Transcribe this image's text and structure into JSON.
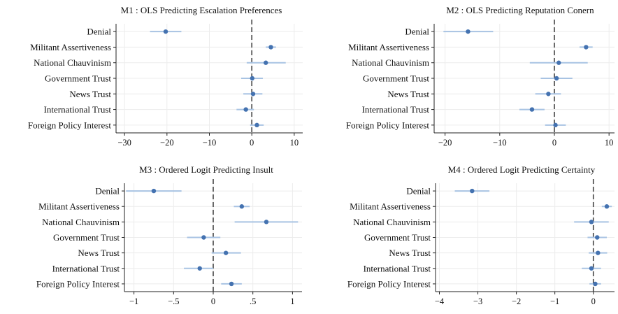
{
  "chart_data": [
    {
      "type": "coefficient-plot",
      "title": "M1 : OLS Predicting Escalation Preferences",
      "categories": [
        "Denial",
        "Militant Assertiveness",
        "National Chauvinism",
        "Government Trust",
        "News Trust",
        "International Trust",
        "Foreign Policy Interest"
      ],
      "estimates": [
        -20.3,
        4.5,
        3.3,
        0.1,
        0.3,
        -1.4,
        1.2
      ],
      "ci_low": [
        -24.0,
        3.3,
        -1.2,
        -2.5,
        -2.0,
        -3.6,
        -0.4
      ],
      "ci_high": [
        -16.6,
        5.7,
        8.0,
        2.6,
        2.5,
        0.5,
        2.8
      ],
      "xlim": [
        -32,
        12
      ],
      "xticks": [
        -30,
        -20,
        -10,
        0,
        10
      ],
      "xtick_labels": [
        "−30",
        "−20",
        "−10",
        "0",
        "10"
      ],
      "reference_line": 0,
      "grid": true
    },
    {
      "type": "coefficient-plot",
      "title": "M2 : OLS Predicting Reputation Conern",
      "categories": [
        "Denial",
        "Militant Assertiveness",
        "National Chauvinism",
        "Government Trust",
        "News Trust",
        "International Trust",
        "Foreign Policy Interest"
      ],
      "estimates": [
        -15.8,
        5.8,
        0.8,
        0.4,
        -1.1,
        -4.1,
        0.2
      ],
      "ci_low": [
        -20.3,
        4.6,
        -4.5,
        -2.5,
        -3.5,
        -6.4,
        -1.7
      ],
      "ci_high": [
        -11.2,
        7.0,
        6.1,
        3.3,
        1.2,
        -1.8,
        2.1
      ],
      "xlim": [
        -22,
        11
      ],
      "xticks": [
        -20,
        -10,
        0,
        10
      ],
      "xtick_labels": [
        "−20",
        "−10",
        "0",
        "10"
      ],
      "reference_line": 0,
      "grid": true
    },
    {
      "type": "coefficient-plot",
      "title": "M3 : Ordered Logit Predicting Insult",
      "categories": [
        "Denial",
        "Militant Assertiveness",
        "National Chauvinism",
        "Government Trust",
        "News Trust",
        "International Trust",
        "Foreign Policy Interest"
      ],
      "estimates": [
        -0.75,
        0.36,
        0.67,
        -0.12,
        0.16,
        -0.17,
        0.23
      ],
      "ci_low": [
        -1.1,
        0.26,
        0.27,
        -0.33,
        -0.02,
        -0.37,
        0.1
      ],
      "ci_high": [
        -0.4,
        0.46,
        1.07,
        0.09,
        0.35,
        0.0,
        0.36
      ],
      "xlim": [
        -1.12,
        1.12
      ],
      "xticks": [
        -1,
        -0.5,
        0,
        0.5,
        1
      ],
      "xtick_labels": [
        "−1",
        "−.5",
        "0",
        ".5",
        "1"
      ],
      "reference_line": 0,
      "grid": true
    },
    {
      "type": "coefficient-plot",
      "title": "M4 : Ordered Logit Predicting Certainty",
      "categories": [
        "Denial",
        "Militant Assertiveness",
        "National Chauvinism",
        "Government Trust",
        "News Trust",
        "International Trust",
        "Foreign Policy Interest"
      ],
      "estimates": [
        -3.15,
        0.35,
        -0.05,
        0.1,
        0.12,
        -0.05,
        0.05
      ],
      "ci_low": [
        -3.6,
        0.22,
        -0.5,
        -0.15,
        -0.12,
        -0.3,
        -0.1
      ],
      "ci_high": [
        -2.7,
        0.48,
        0.4,
        0.35,
        0.36,
        0.2,
        0.2
      ],
      "xlim": [
        -4.1,
        0.55
      ],
      "xticks": [
        -4,
        -3,
        -2,
        -1,
        0
      ],
      "xtick_labels": [
        "−4",
        "−3",
        "−2",
        "−1",
        "0"
      ],
      "reference_line": 0,
      "grid": true
    }
  ],
  "colors": {
    "point": "#4472b0",
    "ci": "#a8c3e3",
    "zero_line": "#444444",
    "grid": "#ececec",
    "axis": "#222222"
  }
}
